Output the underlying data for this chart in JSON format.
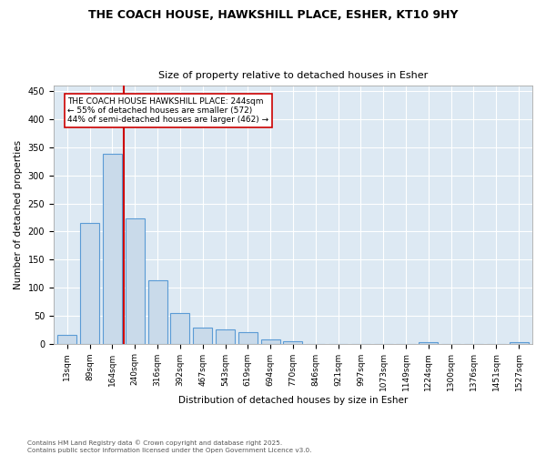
{
  "title1": "THE COACH HOUSE, HAWKSHILL PLACE, ESHER, KT10 9HY",
  "title2": "Size of property relative to detached houses in Esher",
  "xlabel": "Distribution of detached houses by size in Esher",
  "ylabel": "Number of detached properties",
  "bar_labels": [
    "13sqm",
    "89sqm",
    "164sqm",
    "240sqm",
    "316sqm",
    "392sqm",
    "467sqm",
    "543sqm",
    "619sqm",
    "694sqm",
    "770sqm",
    "846sqm",
    "921sqm",
    "997sqm",
    "1073sqm",
    "1149sqm",
    "1224sqm",
    "1300sqm",
    "1376sqm",
    "1451sqm",
    "1527sqm"
  ],
  "bar_values": [
    15,
    216,
    338,
    224,
    113,
    55,
    28,
    26,
    20,
    7,
    5,
    0,
    0,
    0,
    0,
    0,
    3,
    0,
    0,
    0,
    3
  ],
  "bar_color": "#c9daea",
  "bar_edgecolor": "#5b9bd5",
  "annotation_text": "THE COACH HOUSE HAWKSHILL PLACE: 244sqm\n← 55% of detached houses are smaller (572)\n44% of semi-detached houses are larger (462) →",
  "annotation_box_edgecolor": "#cc0000",
  "vline_color": "#cc0000",
  "footer_text": "Contains HM Land Registry data © Crown copyright and database right 2025.\nContains public sector information licensed under the Open Government Licence v3.0.",
  "bg_color": "#ffffff",
  "ax_bg_color": "#dde9f3",
  "ylim": [
    0,
    460
  ]
}
